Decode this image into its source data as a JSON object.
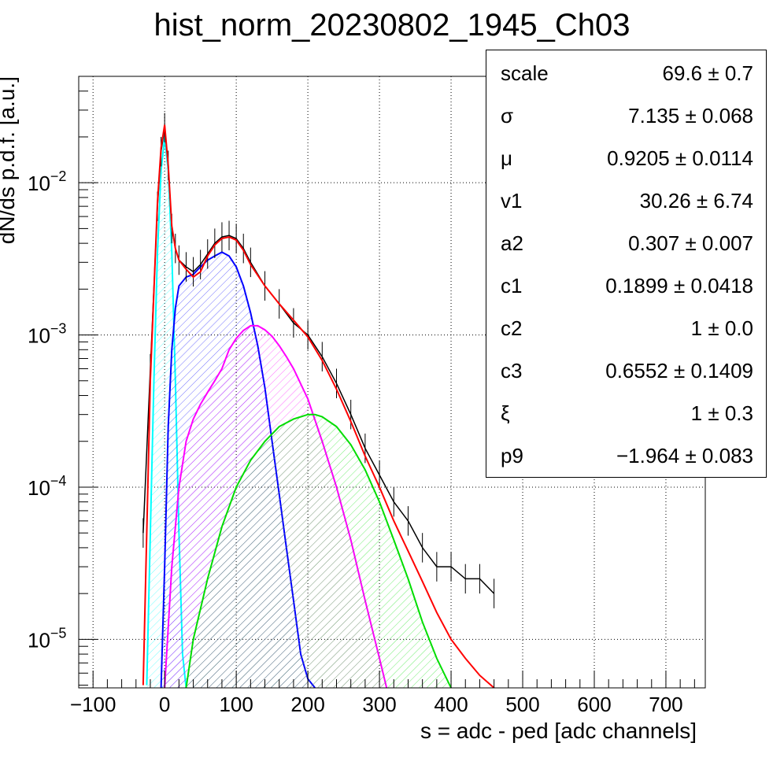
{
  "chart_data": {
    "type": "line",
    "title": "hist_norm_20230802_1945_Ch03",
    "xlabel": "s = adc - ped [adc channels]",
    "ylabel": "dN/ds p.d.f. [a.u.]",
    "xlim": [
      -120,
      755
    ],
    "ylim": [
      4.8e-06,
      0.05
    ],
    "yscale": "log",
    "grid": true,
    "x_ticks": [
      "−100",
      "0",
      "100",
      "200",
      "300",
      "400",
      "500",
      "600",
      "700"
    ],
    "y_ticks": [
      {
        "base": "10",
        "exp": "−2",
        "value": 0.01
      },
      {
        "base": "10",
        "exp": "−3",
        "value": 0.001
      },
      {
        "base": "10",
        "exp": "−4",
        "value": 0.0001
      },
      {
        "base": "10",
        "exp": "−5",
        "value": 1e-05
      }
    ],
    "series": [
      {
        "color": "#000000",
        "style": "histogram",
        "x": [
          -30,
          -20,
          -10,
          -5,
          0,
          5,
          10,
          15,
          20,
          30,
          40,
          50,
          60,
          70,
          80,
          90,
          100,
          110,
          120,
          140,
          160,
          180,
          200,
          220,
          240,
          260,
          280,
          300,
          320,
          340,
          360,
          380,
          400,
          420,
          440,
          460
        ],
        "y": [
          5e-05,
          0.0006,
          0.007,
          0.016,
          0.023,
          0.013,
          0.005,
          0.0037,
          0.0031,
          0.0028,
          0.0026,
          0.0029,
          0.0034,
          0.004,
          0.0044,
          0.0045,
          0.0043,
          0.0037,
          0.003,
          0.0021,
          0.0016,
          0.0012,
          0.001,
          0.00072,
          0.00048,
          0.0003,
          0.00018,
          0.00012,
          8e-05,
          6e-05,
          4e-05,
          3e-05,
          3e-05,
          2.5e-05,
          2.5e-05,
          2e-05
        ]
      },
      {
        "color": "#ff0000",
        "style": "line",
        "x": [
          -30,
          -20,
          -10,
          -5,
          0,
          5,
          10,
          15,
          20,
          30,
          40,
          50,
          60,
          70,
          80,
          90,
          100,
          110,
          120,
          140,
          160,
          180,
          200,
          220,
          240,
          260,
          280,
          300,
          320,
          340,
          360,
          380,
          400,
          420,
          440,
          460
        ],
        "y": [
          5e-06,
          0.0005,
          0.0075,
          0.017,
          0.024,
          0.013,
          0.0052,
          0.0037,
          0.0031,
          0.0027,
          0.0024,
          0.0026,
          0.0033,
          0.0039,
          0.0043,
          0.0044,
          0.0042,
          0.0036,
          0.0029,
          0.0021,
          0.0016,
          0.00125,
          0.00097,
          0.00068,
          0.00044,
          0.00027,
          0.00016,
          0.0001,
          6e-05,
          3.8e-05,
          2.4e-05,
          1.5e-05,
          1e-05,
          7.5e-06,
          5.8e-06,
          4.8e-06
        ]
      },
      {
        "color": "#00ffff",
        "style": "filled",
        "x": [
          -25,
          -20,
          -15,
          -10,
          -5,
          0,
          5,
          10,
          15,
          20,
          25,
          30
        ],
        "y": [
          5e-06,
          5e-05,
          0.0005,
          0.0035,
          0.012,
          0.02,
          0.012,
          0.0035,
          0.0005,
          5e-05,
          8e-06,
          4.8e-06
        ]
      },
      {
        "color": "#0000ff",
        "style": "filled",
        "x": [
          -5,
          0,
          5,
          10,
          15,
          20,
          30,
          40,
          50,
          60,
          70,
          80,
          90,
          100,
          110,
          120,
          130,
          140,
          150,
          160,
          170,
          180,
          190,
          200,
          210
        ],
        "y": [
          4.8e-06,
          3e-05,
          0.00025,
          0.0008,
          0.0015,
          0.0021,
          0.0024,
          0.0025,
          0.0028,
          0.0031,
          0.0033,
          0.0035,
          0.0033,
          0.0028,
          0.0021,
          0.0014,
          0.00085,
          0.00045,
          0.0002,
          9e-05,
          4e-05,
          1.8e-05,
          8e-06,
          5.5e-06,
          4.8e-06
        ]
      },
      {
        "color": "#ff00ff",
        "style": "filled",
        "x": [
          0,
          10,
          20,
          30,
          40,
          50,
          60,
          70,
          80,
          90,
          100,
          110,
          120,
          130,
          140,
          150,
          160,
          170,
          180,
          200,
          220,
          240,
          260,
          280,
          300,
          310
        ],
        "y": [
          4.8e-06,
          3e-05,
          0.0001,
          0.0002,
          0.00028,
          0.00035,
          0.00042,
          0.0005,
          0.0006,
          0.0008,
          0.00095,
          0.00107,
          0.00115,
          0.00115,
          0.00108,
          0.00098,
          0.00085,
          0.00072,
          0.0006,
          0.00038,
          0.0002,
          0.0001,
          4.5e-05,
          1.8e-05,
          7.5e-06,
          4.8e-06
        ]
      },
      {
        "color": "#00dd00",
        "style": "filled",
        "x": [
          30,
          40,
          60,
          80,
          100,
          120,
          140,
          160,
          180,
          200,
          210,
          220,
          240,
          260,
          280,
          300,
          320,
          340,
          360,
          380,
          400
        ],
        "y": [
          4.8e-06,
          1e-05,
          2.5e-05,
          5.5e-05,
          0.0001,
          0.00015,
          0.0002,
          0.00025,
          0.00028,
          0.0003,
          0.0003,
          0.00029,
          0.00025,
          0.00019,
          0.00013,
          8e-05,
          4.5e-05,
          2.5e-05,
          1.3e-05,
          7.5e-06,
          4.8e-06
        ]
      }
    ],
    "fit_parameters": [
      {
        "name": "scale",
        "value": "69.6 ± 0.7"
      },
      {
        "name": "σ",
        "value": "7.135 ± 0.068"
      },
      {
        "name": "μ",
        "value": "0.9205 ± 0.0114"
      },
      {
        "name": "v1",
        "value": "30.26 ± 6.74"
      },
      {
        "name": "a2",
        "value": "0.307 ± 0.007"
      },
      {
        "name": "c1",
        "value": "0.1899 ± 0.0418"
      },
      {
        "name": "c2",
        "value": "1 ± 0.0"
      },
      {
        "name": "c3",
        "value": "0.6552 ± 0.1409"
      },
      {
        "name": "ξ",
        "value": "1 ± 0.3"
      },
      {
        "name": "p9",
        "value": "−1.964 ± 0.083"
      }
    ]
  }
}
